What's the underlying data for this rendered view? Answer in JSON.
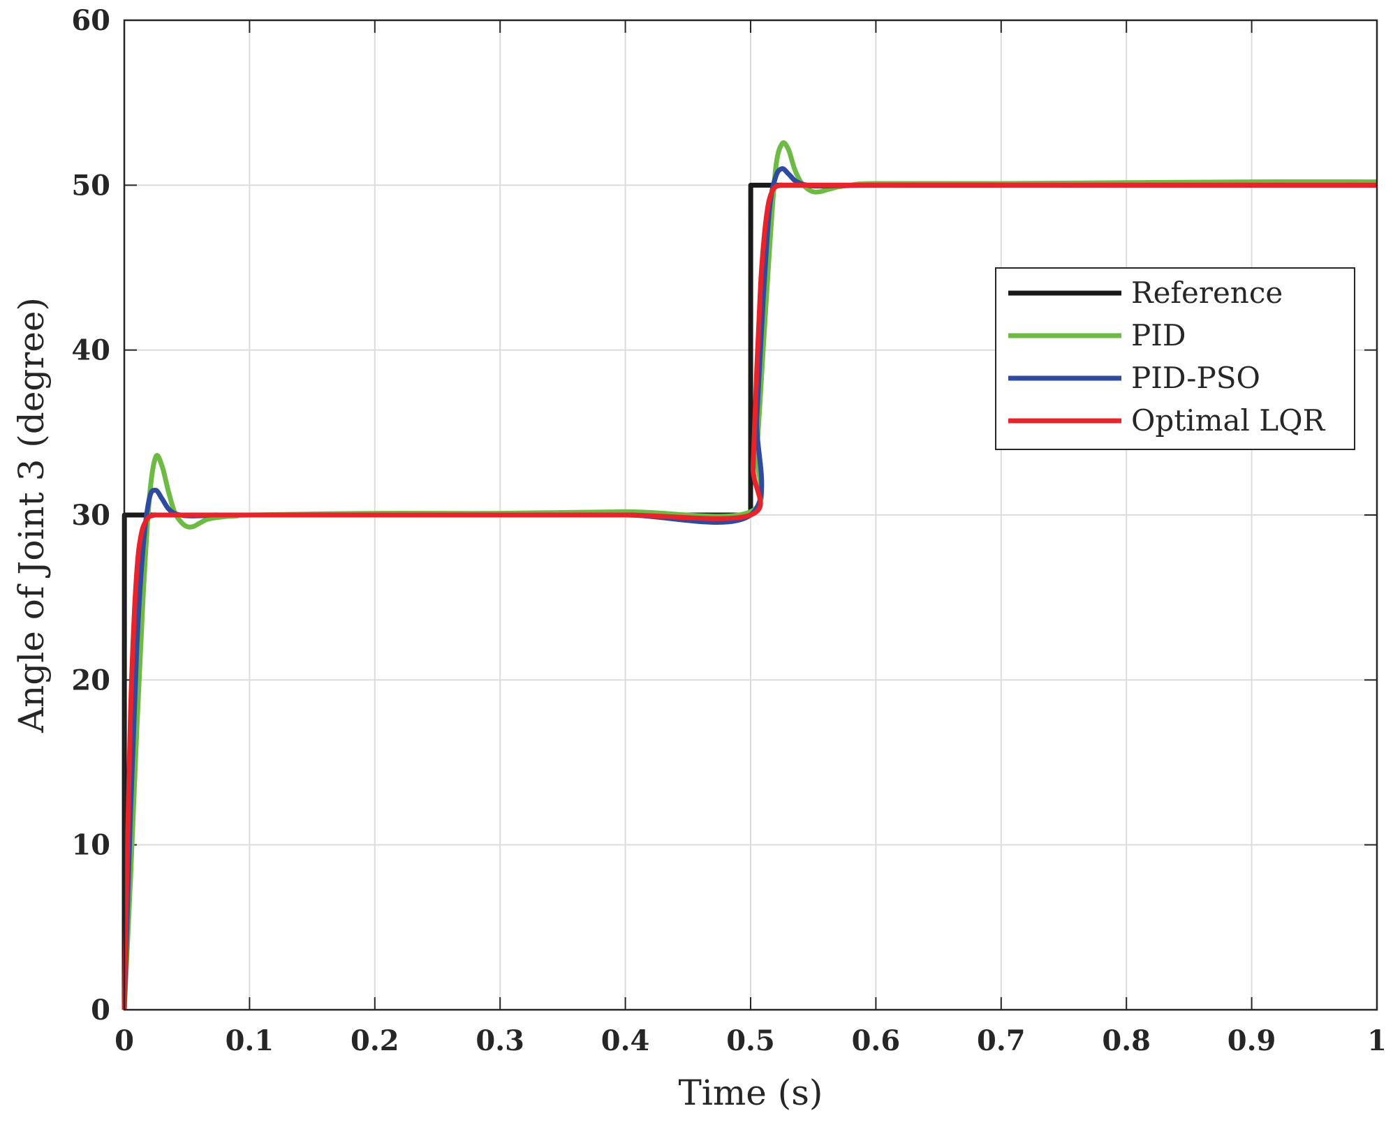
{
  "chart_data": {
    "type": "line",
    "title": "",
    "xlabel": "Time (s)",
    "ylabel": "Angle of Joint 3 (degree)",
    "xlim": [
      0,
      1
    ],
    "ylim": [
      0,
      60
    ],
    "xticks": [
      0,
      0.1,
      0.2,
      0.3,
      0.4,
      0.5,
      0.6,
      0.7,
      0.8,
      0.9,
      1
    ],
    "xtick_labels": [
      "0",
      "0.1",
      "0.2",
      "0.3",
      "0.4",
      "0.5",
      "0.6",
      "0.7",
      "0.8",
      "0.9",
      "1"
    ],
    "yticks": [
      0,
      10,
      20,
      30,
      40,
      50,
      60
    ],
    "ytick_labels": [
      "0",
      "10",
      "20",
      "30",
      "40",
      "50",
      "60"
    ],
    "grid": true,
    "legend_position": "right",
    "series": [
      {
        "name": "Reference",
        "color": "#1a1a1a",
        "x": [
          0,
          0.0001,
          0.5,
          0.5001,
          1
        ],
        "y": [
          0,
          30,
          30,
          50,
          50
        ]
      },
      {
        "name": "PID",
        "color": "#6dbb45",
        "x": [
          0,
          0.005,
          0.01,
          0.015,
          0.02,
          0.025,
          0.03,
          0.035,
          0.04,
          0.045,
          0.05,
          0.055,
          0.06,
          0.065,
          0.07,
          0.08,
          0.09,
          0.1,
          0.2,
          0.3,
          0.4,
          0.5,
          0.505,
          0.51,
          0.515,
          0.52,
          0.525,
          0.53,
          0.535,
          0.54,
          0.545,
          0.55,
          0.555,
          0.56,
          0.565,
          0.57,
          0.58,
          0.6,
          0.7,
          0.8,
          0.9,
          1.0
        ],
        "y": [
          0,
          8,
          17,
          25,
          31,
          33.5,
          33,
          31.5,
          30.2,
          29.6,
          29.3,
          29.3,
          29.5,
          29.7,
          29.8,
          29.9,
          29.95,
          30,
          30.1,
          30.1,
          30.2,
          30.2,
          34,
          40,
          46,
          51,
          52.5,
          52.2,
          51,
          50.2,
          49.8,
          49.6,
          49.6,
          49.7,
          49.8,
          49.9,
          50,
          50.1,
          50.1,
          50.15,
          50.2,
          50.2
        ]
      },
      {
        "name": "PID-PSO",
        "color": "#2e4ba0",
        "x": [
          0,
          0.005,
          0.01,
          0.015,
          0.02,
          0.025,
          0.03,
          0.035,
          0.04,
          0.045,
          0.05,
          0.06,
          0.07,
          0.08,
          0.1,
          0.2,
          0.3,
          0.4,
          0.5,
          0.505,
          0.51,
          0.515,
          0.52,
          0.525,
          0.53,
          0.535,
          0.54,
          0.545,
          0.55,
          0.56,
          0.6,
          0.7,
          0.8,
          0.9,
          1.0
        ],
        "y": [
          0,
          12,
          22,
          28,
          31,
          31.5,
          31,
          30.4,
          30.1,
          30,
          29.95,
          29.95,
          30,
          30,
          30,
          30,
          30,
          30,
          30,
          36,
          43,
          48.5,
          50.5,
          51,
          50.7,
          50.3,
          50.1,
          50,
          49.95,
          49.95,
          50,
          50,
          50,
          50,
          50
        ]
      },
      {
        "name": "Optimal LQR",
        "color": "#e8242a",
        "x": [
          0,
          0.002,
          0.005,
          0.008,
          0.011,
          0.014,
          0.017,
          0.02,
          0.025,
          0.03,
          0.1,
          0.2,
          0.3,
          0.4,
          0.5,
          0.502,
          0.505,
          0.508,
          0.511,
          0.514,
          0.517,
          0.52,
          0.525,
          0.53,
          0.6,
          0.7,
          0.8,
          0.9,
          1.0
        ],
        "y": [
          0,
          8,
          18,
          24,
          27.5,
          29,
          29.6,
          29.9,
          30,
          30,
          30,
          30,
          30,
          30,
          30,
          33,
          39,
          44,
          47,
          48.8,
          49.6,
          49.9,
          50,
          50,
          50,
          50,
          50,
          50,
          50
        ]
      }
    ]
  }
}
